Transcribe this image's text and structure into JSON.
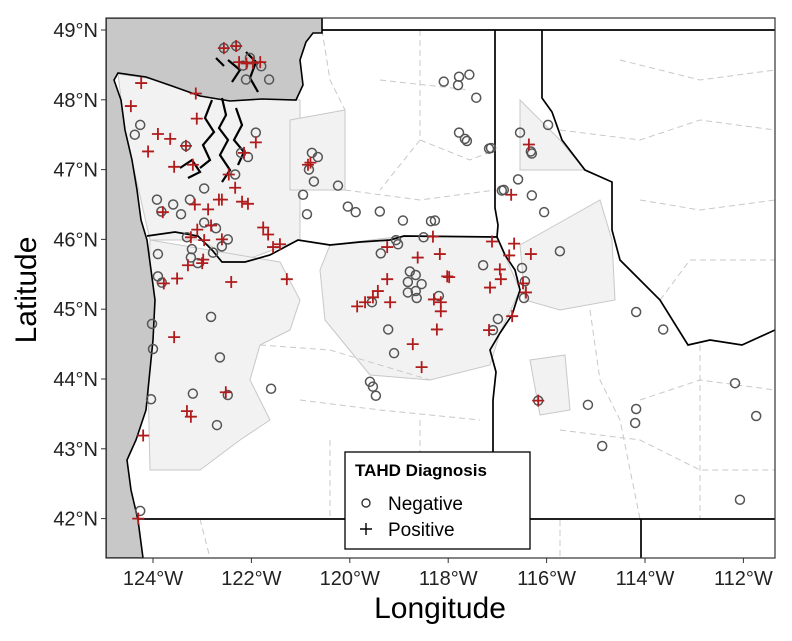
{
  "chart_data": {
    "type": "scatter",
    "subtype": "map",
    "xlabel": "Longitude",
    "ylabel": "Latitude",
    "xlim": [
      -125.0,
      -111.4
    ],
    "ylim": [
      41.4,
      49.2
    ],
    "x_ticks": [
      "124°W",
      "122°W",
      "120°W",
      "118°W",
      "116°W",
      "114°W",
      "112°W"
    ],
    "x_tick_values": [
      -124,
      -122,
      -120,
      -118,
      -116,
      -114,
      -112
    ],
    "y_ticks": [
      "42°N",
      "43°N",
      "44°N",
      "45°N",
      "46°N",
      "47°N",
      "48°N",
      "49°N"
    ],
    "y_tick_values": [
      42,
      43,
      44,
      45,
      46,
      47,
      48,
      49
    ],
    "grid": false,
    "colors": {
      "negative": "#555555",
      "positive": "#b01c1c",
      "ocean": "#c8c8c8",
      "positive_county_fill": "#f2f2f2",
      "county_line": "#c8c8c8",
      "state_line": "#000000"
    },
    "legend": {
      "title": "TAHD Diagnosis",
      "placement": "bottom-center",
      "entries": [
        {
          "label": "Negative",
          "marker": "circle"
        },
        {
          "label": "Positive",
          "marker": "plus"
        }
      ]
    },
    "series": [
      {
        "name": "Negative",
        "marker": "circle",
        "points": [
          [
            -122.03,
            48.6
          ],
          [
            -122.17,
            48.49
          ],
          [
            -122.11,
            48.29
          ],
          [
            -121.64,
            48.29
          ],
          [
            -121.8,
            48.48
          ],
          [
            -122.31,
            48.77
          ],
          [
            -122.56,
            48.74
          ],
          [
            -124.26,
            47.64
          ],
          [
            -124.37,
            47.5
          ],
          [
            -121.91,
            47.53
          ],
          [
            -122.21,
            47.24
          ],
          [
            -122.07,
            47.18
          ],
          [
            -122.33,
            46.93
          ],
          [
            -122.96,
            46.73
          ],
          [
            -123.92,
            46.57
          ],
          [
            -123.59,
            46.5
          ],
          [
            -123.83,
            46.4
          ],
          [
            -123.25,
            46.57
          ],
          [
            -123.43,
            46.36
          ],
          [
            -122.96,
            46.24
          ],
          [
            -122.72,
            46.16
          ],
          [
            -122.6,
            45.9
          ],
          [
            -122.48,
            46.0
          ],
          [
            -122.78,
            45.81
          ],
          [
            -123.31,
            46.03
          ],
          [
            -123.21,
            45.86
          ],
          [
            -123.23,
            45.74
          ],
          [
            -123.09,
            45.66
          ],
          [
            -123.9,
            45.79
          ],
          [
            -123.9,
            45.47
          ],
          [
            -123.82,
            45.38
          ],
          [
            -124.02,
            44.79
          ],
          [
            -124.0,
            44.43
          ],
          [
            -122.82,
            44.89
          ],
          [
            -122.64,
            44.31
          ],
          [
            -123.19,
            43.79
          ],
          [
            -122.48,
            43.77
          ],
          [
            -122.7,
            43.34
          ],
          [
            -124.04,
            43.71
          ],
          [
            -124.26,
            42.11
          ],
          [
            -121.6,
            43.86
          ],
          [
            -123.33,
            47.34
          ],
          [
            -120.77,
            47.24
          ],
          [
            -120.65,
            47.18
          ],
          [
            -120.83,
            47.0
          ],
          [
            -120.73,
            46.83
          ],
          [
            -120.24,
            46.77
          ],
          [
            -120.95,
            46.64
          ],
          [
            -120.87,
            46.36
          ],
          [
            -120.04,
            46.47
          ],
          [
            -119.88,
            46.39
          ],
          [
            -119.39,
            46.4
          ],
          [
            -118.92,
            46.27
          ],
          [
            -119.06,
            45.99
          ],
          [
            -119.37,
            45.8
          ],
          [
            -119.02,
            45.93
          ],
          [
            -118.09,
            48.26
          ],
          [
            -117.78,
            48.33
          ],
          [
            -117.8,
            48.21
          ],
          [
            -117.57,
            48.36
          ],
          [
            -117.43,
            48.03
          ],
          [
            -117.78,
            47.53
          ],
          [
            -117.66,
            47.44
          ],
          [
            -117.62,
            47.41
          ],
          [
            -117.17,
            47.3
          ],
          [
            -117.13,
            47.31
          ],
          [
            -116.54,
            47.53
          ],
          [
            -115.97,
            47.64
          ],
          [
            -116.3,
            47.23
          ],
          [
            -116.32,
            47.26
          ],
          [
            -116.58,
            46.86
          ],
          [
            -116.91,
            46.7
          ],
          [
            -116.87,
            46.71
          ],
          [
            -116.3,
            46.63
          ],
          [
            -116.05,
            46.39
          ],
          [
            -118.35,
            46.26
          ],
          [
            -118.27,
            46.27
          ],
          [
            -118.78,
            45.54
          ],
          [
            -118.66,
            45.49
          ],
          [
            -118.82,
            45.39
          ],
          [
            -118.54,
            45.36
          ],
          [
            -118.66,
            45.26
          ],
          [
            -118.64,
            45.16
          ],
          [
            -118.82,
            45.24
          ],
          [
            -118.19,
            45.19
          ],
          [
            -117.29,
            45.63
          ],
          [
            -116.5,
            45.59
          ],
          [
            -116.44,
            45.4
          ],
          [
            -116.46,
            45.16
          ],
          [
            -116.99,
            44.86
          ],
          [
            -117.09,
            44.7
          ],
          [
            -115.73,
            45.83
          ],
          [
            -119.22,
            44.71
          ],
          [
            -119.1,
            44.37
          ],
          [
            -119.59,
            43.96
          ],
          [
            -119.53,
            43.89
          ],
          [
            -119.47,
            43.76
          ],
          [
            -114.18,
            44.96
          ],
          [
            -113.63,
            44.71
          ],
          [
            -116.17,
            43.69
          ],
          [
            -115.16,
            43.63
          ],
          [
            -114.18,
            43.57
          ],
          [
            -114.2,
            43.37
          ],
          [
            -114.87,
            43.04
          ],
          [
            -112.17,
            43.94
          ],
          [
            -111.74,
            43.47
          ],
          [
            -112.07,
            42.27
          ],
          [
            -118.5,
            46.03
          ],
          [
            -119.55,
            45.1
          ]
        ]
      },
      {
        "name": "Positive",
        "marker": "plus",
        "points": [
          [
            -124.24,
            48.24
          ],
          [
            -124.45,
            47.91
          ],
          [
            -124.1,
            47.26
          ],
          [
            -123.9,
            47.51
          ],
          [
            -123.65,
            47.44
          ],
          [
            -123.33,
            47.34
          ],
          [
            -123.57,
            47.04
          ],
          [
            -123.11,
            47.73
          ],
          [
            -123.13,
            48.09
          ],
          [
            -123.19,
            47.07
          ],
          [
            -122.46,
            46.93
          ],
          [
            -122.33,
            46.74
          ],
          [
            -121.91,
            47.39
          ],
          [
            -122.15,
            47.24
          ],
          [
            -122.66,
            46.57
          ],
          [
            -123.15,
            46.5
          ],
          [
            -122.88,
            46.43
          ],
          [
            -123.8,
            46.39
          ],
          [
            -123.23,
            46.03
          ],
          [
            -122.96,
            45.99
          ],
          [
            -122.6,
            46.0
          ],
          [
            -122.82,
            46.2
          ],
          [
            -123.1,
            46.14
          ],
          [
            -122.98,
            45.71
          ],
          [
            -123.51,
            45.44
          ],
          [
            -123.78,
            45.37
          ],
          [
            -123.29,
            45.63
          ],
          [
            -123.0,
            45.66
          ],
          [
            -121.66,
            46.07
          ],
          [
            -121.56,
            45.89
          ],
          [
            -121.42,
            45.93
          ],
          [
            -121.28,
            45.43
          ],
          [
            -121.76,
            46.17
          ],
          [
            -122.6,
            46.57
          ],
          [
            -122.19,
            46.54
          ],
          [
            -122.07,
            46.51
          ],
          [
            -123.57,
            44.6
          ],
          [
            -122.41,
            45.39
          ],
          [
            -123.31,
            43.54
          ],
          [
            -123.23,
            43.46
          ],
          [
            -122.52,
            43.81
          ],
          [
            -124.2,
            43.19
          ],
          [
            -124.3,
            42.0
          ],
          [
            -122.31,
            48.77
          ],
          [
            -122.56,
            48.74
          ],
          [
            -121.97,
            48.53
          ],
          [
            -122.25,
            48.54
          ],
          [
            -121.82,
            48.54
          ],
          [
            -122.1,
            48.52
          ],
          [
            -120.85,
            47.07
          ],
          [
            -120.8,
            47.1
          ],
          [
            -119.24,
            45.89
          ],
          [
            -118.31,
            46.04
          ],
          [
            -118.62,
            45.74
          ],
          [
            -118.17,
            45.79
          ],
          [
            -118.02,
            45.47
          ],
          [
            -117.98,
            45.46
          ],
          [
            -118.29,
            45.14
          ],
          [
            -118.15,
            45.1
          ],
          [
            -118.15,
            44.97
          ],
          [
            -118.23,
            44.71
          ],
          [
            -118.72,
            44.5
          ],
          [
            -118.54,
            44.17
          ],
          [
            -119.53,
            45.17
          ],
          [
            -119.85,
            45.04
          ],
          [
            -119.69,
            45.1
          ],
          [
            -119.43,
            45.26
          ],
          [
            -119.24,
            45.43
          ],
          [
            -119.18,
            45.1
          ],
          [
            -117.11,
            45.97
          ],
          [
            -116.66,
            45.94
          ],
          [
            -116.76,
            45.77
          ],
          [
            -116.32,
            45.79
          ],
          [
            -116.93,
            45.43
          ],
          [
            -117.15,
            45.31
          ],
          [
            -116.48,
            45.37
          ],
          [
            -116.42,
            45.24
          ],
          [
            -116.7,
            44.9
          ],
          [
            -117.17,
            44.7
          ],
          [
            -116.95,
            45.57
          ],
          [
            -116.72,
            46.64
          ],
          [
            -116.36,
            47.36
          ],
          [
            -116.17,
            43.69
          ]
        ]
      }
    ]
  }
}
